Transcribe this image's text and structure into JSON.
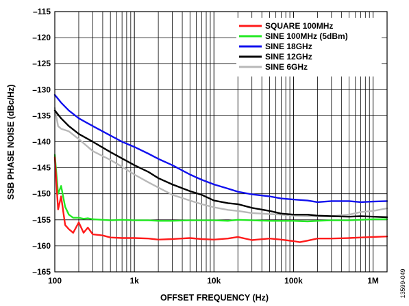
{
  "figure_id": "13599-049",
  "chart_data": {
    "type": "line",
    "title": "",
    "xlabel": "OFFSET FREQUENCY (Hz)",
    "ylabel": "SSB PHASE NOISE (dBc/Hz)",
    "xscale": "log",
    "xlim": [
      100,
      1500000
    ],
    "ylim": [
      -165,
      -115
    ],
    "x_ticks": [
      {
        "value": 100,
        "label": "100"
      },
      {
        "value": 1000,
        "label": "1k"
      },
      {
        "value": 10000,
        "label": "10k"
      },
      {
        "value": 100000,
        "label": "100k"
      },
      {
        "value": 1000000,
        "label": "1M"
      }
    ],
    "y_ticks": [
      {
        "value": -115,
        "label": "–115"
      },
      {
        "value": -120,
        "label": "–120"
      },
      {
        "value": -125,
        "label": "–125"
      },
      {
        "value": -130,
        "label": "–130"
      },
      {
        "value": -135,
        "label": "–135"
      },
      {
        "value": -140,
        "label": "–140"
      },
      {
        "value": -145,
        "label": "–145"
      },
      {
        "value": -150,
        "label": "–150"
      },
      {
        "value": -155,
        "label": "–155"
      },
      {
        "value": -160,
        "label": "–160"
      },
      {
        "value": -165,
        "label": "–165"
      }
    ],
    "grid": true,
    "legend_position": "top-right",
    "series": [
      {
        "name": "SQUARE 100MHz",
        "color": "#ff1a1a",
        "x": [
          100,
          110,
          120,
          135,
          150,
          170,
          200,
          230,
          260,
          300,
          400,
          500,
          700,
          1000,
          1500,
          2000,
          3000,
          5000,
          7000,
          10000,
          15000,
          20000,
          30000,
          50000,
          70000,
          100000,
          120000,
          150000,
          200000,
          300000,
          500000,
          700000,
          1000000,
          1500000
        ],
        "y": [
          -143,
          -153,
          -150.5,
          -156,
          -156.8,
          -157.5,
          -155.5,
          -157.5,
          -156.5,
          -157.8,
          -158,
          -158.4,
          -158.5,
          -158.5,
          -158.6,
          -158.8,
          -158.7,
          -158.5,
          -158.7,
          -158.8,
          -158.6,
          -158.3,
          -158.9,
          -158.6,
          -158.8,
          -159.1,
          -159.3,
          -159,
          -158.6,
          -158.6,
          -158.5,
          -158.4,
          -158.3,
          -158.2
        ]
      },
      {
        "name": "SINE 100MHz (5dBm)",
        "color": "#22e822",
        "x": [
          100,
          110,
          120,
          135,
          150,
          170,
          200,
          230,
          260,
          300,
          400,
          500,
          700,
          1000,
          1500,
          2000,
          3000,
          5000,
          7000,
          10000,
          15000,
          20000,
          30000,
          50000,
          70000,
          100000,
          150000,
          200000,
          300000,
          500000,
          700000,
          1000000,
          1500000
        ],
        "y": [
          -142.5,
          -150,
          -148.5,
          -152.5,
          -154,
          -154.6,
          -154.6,
          -154.8,
          -154.7,
          -154.9,
          -155,
          -155.1,
          -155,
          -155.1,
          -155.1,
          -155.2,
          -155.2,
          -155.1,
          -155.1,
          -155.1,
          -155.2,
          -155,
          -155.1,
          -155.2,
          -155.2,
          -155.2,
          -155.3,
          -155.2,
          -155.1,
          -155.1,
          -155,
          -154.9,
          -154.9
        ]
      },
      {
        "name": "SINE 18GHz",
        "color": "#1010ee",
        "x": [
          100,
          120,
          150,
          200,
          300,
          500,
          700,
          1000,
          1500,
          2000,
          3000,
          5000,
          7000,
          10000,
          15000,
          20000,
          30000,
          50000,
          70000,
          100000,
          150000,
          200000,
          300000,
          500000,
          700000,
          1000000,
          1500000
        ],
        "y": [
          -131,
          -132.5,
          -134,
          -135.5,
          -137,
          -138.8,
          -140,
          -141,
          -142.3,
          -143.3,
          -144.5,
          -146.3,
          -147.3,
          -148.2,
          -149,
          -149.6,
          -150.1,
          -150.5,
          -150.9,
          -151.1,
          -151.3,
          -151.6,
          -151.4,
          -151.4,
          -151.6,
          -151.5,
          -151.4
        ]
      },
      {
        "name": "SINE 12GHz",
        "color": "#000000",
        "x": [
          100,
          120,
          150,
          200,
          300,
          500,
          700,
          1000,
          1500,
          2000,
          3000,
          5000,
          7000,
          10000,
          15000,
          20000,
          30000,
          50000,
          70000,
          100000,
          150000,
          200000,
          300000,
          500000,
          700000,
          1000000,
          1500000
        ],
        "y": [
          -134,
          -135.5,
          -137,
          -138.5,
          -140,
          -142,
          -143.2,
          -144.5,
          -145.8,
          -147,
          -148.2,
          -149.5,
          -150.2,
          -151.3,
          -151.8,
          -152,
          -152.7,
          -153.3,
          -153.8,
          -154,
          -154,
          -154.2,
          -154.3,
          -154.4,
          -154.3,
          -154.4,
          -154.5
        ]
      },
      {
        "name": "SINE 6GHz",
        "color": "#b8b8b8",
        "x": [
          100,
          110,
          120,
          150,
          200,
          300,
          500,
          700,
          1000,
          1500,
          2000,
          3000,
          5000,
          7000,
          10000,
          15000,
          20000,
          30000,
          50000,
          70000,
          100000,
          150000,
          200000,
          300000,
          500000,
          700000,
          1000000,
          1500000
        ],
        "y": [
          -133.5,
          -137,
          -137.5,
          -138,
          -139.5,
          -141.8,
          -143.5,
          -144.8,
          -146.3,
          -147.8,
          -148.8,
          -150.2,
          -151.3,
          -152,
          -152.6,
          -153.1,
          -153.3,
          -153.7,
          -153.9,
          -154,
          -154.2,
          -154.3,
          -154.3,
          -154.3,
          -154,
          -153.5,
          -153.3,
          -152.8
        ]
      }
    ]
  }
}
